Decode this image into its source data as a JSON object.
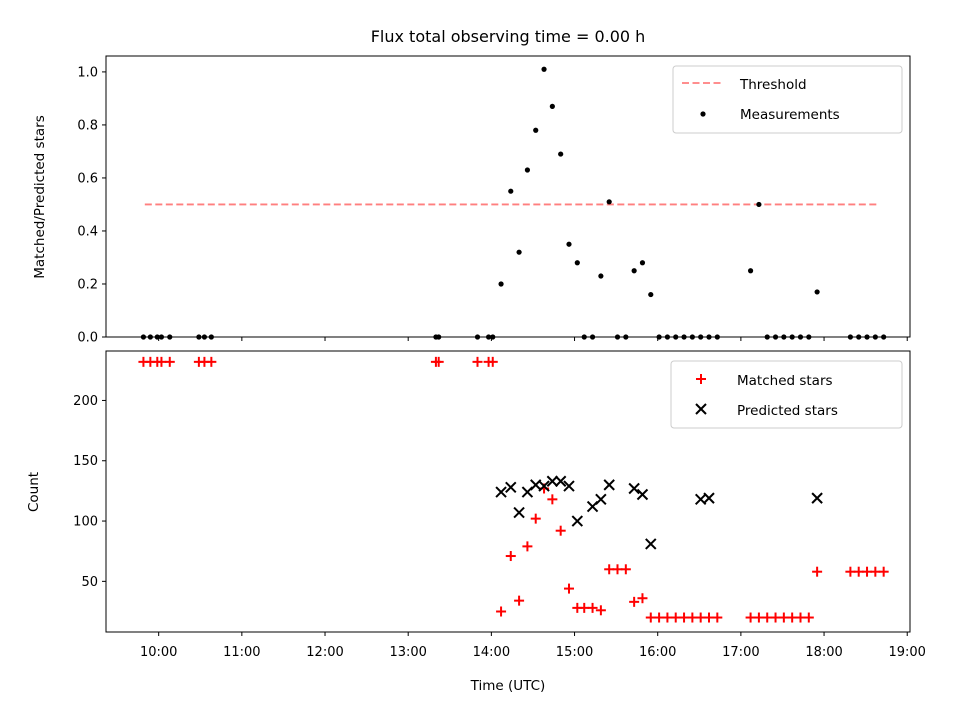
{
  "chart_data": [
    {
      "type": "scatter",
      "title": "Flux total observing time = 0.00 h",
      "xlabel": "",
      "ylabel": "Matched/Predicted stars",
      "ylim": [
        0.0,
        1.06
      ],
      "yticks": [
        "0.0",
        "0.2",
        "0.4",
        "0.6",
        "0.8",
        "1.0"
      ],
      "yticks_values": [
        0.0,
        0.2,
        0.4,
        0.6,
        0.8,
        1.0
      ],
      "grid": false,
      "legend_position": "top-right",
      "threshold": {
        "name": "Threshold",
        "value": 0.5,
        "x_start": "09:50",
        "x_end": "18:40",
        "color": "#ff7f7f",
        "style": "dashed"
      },
      "series": [
        {
          "name": "Measurements",
          "marker": "dot",
          "color": "#000000",
          "x": [
            "09:49",
            "09:54",
            "09:59",
            "10:02",
            "10:08",
            "10:29",
            "10:33",
            "10:38",
            "13:20",
            "13:22",
            "13:50",
            "13:58",
            "14:01",
            "14:07",
            "14:14",
            "14:20",
            "14:26",
            "14:32",
            "14:38",
            "14:44",
            "14:50",
            "14:56",
            "15:02",
            "15:07",
            "15:13",
            "15:19",
            "15:25",
            "15:31",
            "15:37",
            "15:43",
            "15:49",
            "15:55",
            "16:01",
            "16:07",
            "16:13",
            "16:19",
            "16:25",
            "16:31",
            "16:37",
            "16:43",
            "17:07",
            "17:13",
            "17:19",
            "17:25",
            "17:31",
            "17:37",
            "17:43",
            "17:49",
            "17:55",
            "18:19",
            "18:25",
            "18:31",
            "18:37",
            "18:43"
          ],
          "y": [
            0,
            0,
            0,
            0,
            0,
            0,
            0,
            0,
            0,
            0,
            0,
            0,
            0,
            0.2,
            0.55,
            0.32,
            0.63,
            0.78,
            1.01,
            0.87,
            0.69,
            0.35,
            0.28,
            0,
            0,
            0.23,
            0.51,
            0,
            0,
            0.25,
            0.28,
            0.16,
            0,
            0,
            0,
            0,
            0,
            0,
            0,
            0,
            0.25,
            0.5,
            0,
            0,
            0,
            0,
            0,
            0,
            0.17,
            0,
            0,
            0,
            0,
            0
          ]
        }
      ]
    },
    {
      "type": "scatter",
      "title": "",
      "xlabel": "Time (UTC)",
      "ylabel": "Count",
      "xlim": [
        "09:22",
        "19:02"
      ],
      "xticks": [
        "10:00",
        "11:00",
        "12:00",
        "13:00",
        "14:00",
        "15:00",
        "16:00",
        "17:00",
        "18:00",
        "19:00"
      ],
      "ylim": [
        8,
        241
      ],
      "yticks": [
        "50",
        "100",
        "150",
        "200"
      ],
      "yticks_values": [
        50,
        100,
        150,
        200
      ],
      "grid": false,
      "legend_position": "top-right",
      "series": [
        {
          "name": "Matched stars",
          "marker": "plus",
          "color": "#ff0000",
          "x": [
            "09:49",
            "09:54",
            "09:59",
            "10:02",
            "10:08",
            "10:29",
            "10:33",
            "10:38",
            "13:20",
            "13:22",
            "13:50",
            "13:58",
            "14:01",
            "14:07",
            "14:14",
            "14:20",
            "14:26",
            "14:32",
            "14:38",
            "14:44",
            "14:50",
            "14:56",
            "15:02",
            "15:07",
            "15:13",
            "15:19",
            "15:25",
            "15:31",
            "15:37",
            "15:43",
            "15:49",
            "15:55",
            "16:01",
            "16:07",
            "16:13",
            "16:19",
            "16:25",
            "16:31",
            "16:37",
            "16:43",
            "17:07",
            "17:13",
            "17:19",
            "17:25",
            "17:31",
            "17:37",
            "17:43",
            "17:49",
            "17:55",
            "18:19",
            "18:25",
            "18:31",
            "18:37",
            "18:43"
          ],
          "y": [
            232,
            232,
            232,
            232,
            232,
            232,
            232,
            232,
            232,
            232,
            232,
            232,
            232,
            25,
            71,
            34,
            79,
            102,
            127,
            118,
            92,
            44,
            28,
            28,
            28,
            26,
            60,
            60,
            60,
            33,
            36,
            20,
            20,
            20,
            20,
            20,
            20,
            20,
            20,
            20,
            20,
            20,
            20,
            20,
            20,
            20,
            20,
            20,
            58,
            58,
            58,
            58,
            58,
            58
          ]
        },
        {
          "name": "Predicted stars",
          "marker": "x",
          "color": "#000000",
          "x": [
            "14:07",
            "14:14",
            "14:20",
            "14:26",
            "14:32",
            "14:38",
            "14:44",
            "14:50",
            "14:56",
            "15:02",
            "15:13",
            "15:19",
            "15:25",
            "15:43",
            "15:49",
            "15:55",
            "16:31",
            "16:37",
            "17:55"
          ],
          "y": [
            124,
            128,
            107,
            124,
            130,
            129,
            133,
            133,
            129,
            100,
            112,
            118,
            130,
            127,
            122,
            81,
            118,
            119,
            119
          ]
        }
      ]
    }
  ]
}
